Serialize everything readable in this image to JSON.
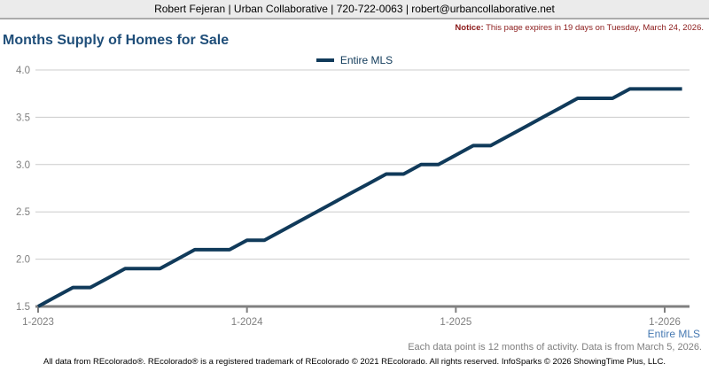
{
  "header": {
    "contact": "Robert Fejeran | Urban Collaborative | 720-722-0063 | robert@urbancollaborative.net"
  },
  "notice": {
    "label": "Notice:",
    "text": " This page expires in 19 days on Tuesday, March 24, 2026."
  },
  "title": "Months Supply of Homes for Sale",
  "legend": {
    "label": "Entire MLS"
  },
  "corner_label": "Entire MLS",
  "footnotes": {
    "data_note": "Each data point is 12 months of activity. Data is from March 5, 2026.",
    "copyright": "All data from REcolorado®. REcolorado® is a registered trademark of REcolorado © 2021 REcolorado. All rights reserved. InfoSparks © 2026 ShowingTime Plus, LLC."
  },
  "colors": {
    "line": "#103a5a",
    "title": "#1f4e79",
    "notice": "#8b1a1a",
    "corner_label": "#4679b2",
    "gridline": "#cccccc",
    "axis": "#808080",
    "tick_label": "#7f7f7f",
    "header_bg": "#ebebeb"
  },
  "chart_data": {
    "type": "line",
    "title": "Months Supply of Homes for Sale",
    "xlabel": "",
    "ylabel": "",
    "ylim": [
      1.5,
      4.0
    ],
    "y_ticks": [
      1.5,
      2.0,
      2.5,
      3.0,
      3.5,
      4.0
    ],
    "grid": "horizontal",
    "legend_position": "top-center",
    "x": [
      "1-2023",
      "2-2023",
      "3-2023",
      "4-2023",
      "5-2023",
      "6-2023",
      "7-2023",
      "8-2023",
      "9-2023",
      "10-2023",
      "11-2023",
      "12-2023",
      "1-2024",
      "2-2024",
      "3-2024",
      "4-2024",
      "5-2024",
      "6-2024",
      "7-2024",
      "8-2024",
      "9-2024",
      "10-2024",
      "11-2024",
      "12-2024",
      "1-2025",
      "2-2025",
      "3-2025",
      "4-2025",
      "5-2025",
      "6-2025",
      "7-2025",
      "8-2025",
      "9-2025",
      "10-2025",
      "11-2025",
      "12-2025",
      "1-2026",
      "2-2026"
    ],
    "x_tick_labels": [
      "1-2023",
      "1-2024",
      "1-2025",
      "1-2026"
    ],
    "x_tick_month_index": [
      0,
      12,
      24,
      36
    ],
    "series": [
      {
        "name": "Entire MLS",
        "color": "#103a5a",
        "values": [
          1.5,
          1.6,
          1.7,
          1.7,
          1.8,
          1.9,
          1.9,
          1.9,
          2.0,
          2.1,
          2.1,
          2.1,
          2.2,
          2.2,
          2.3,
          2.4,
          2.5,
          2.6,
          2.7,
          2.8,
          2.9,
          2.9,
          3.0,
          3.0,
          3.1,
          3.2,
          3.2,
          3.3,
          3.4,
          3.5,
          3.6,
          3.7,
          3.7,
          3.7,
          3.8,
          3.8,
          3.8,
          3.8
        ]
      }
    ]
  }
}
